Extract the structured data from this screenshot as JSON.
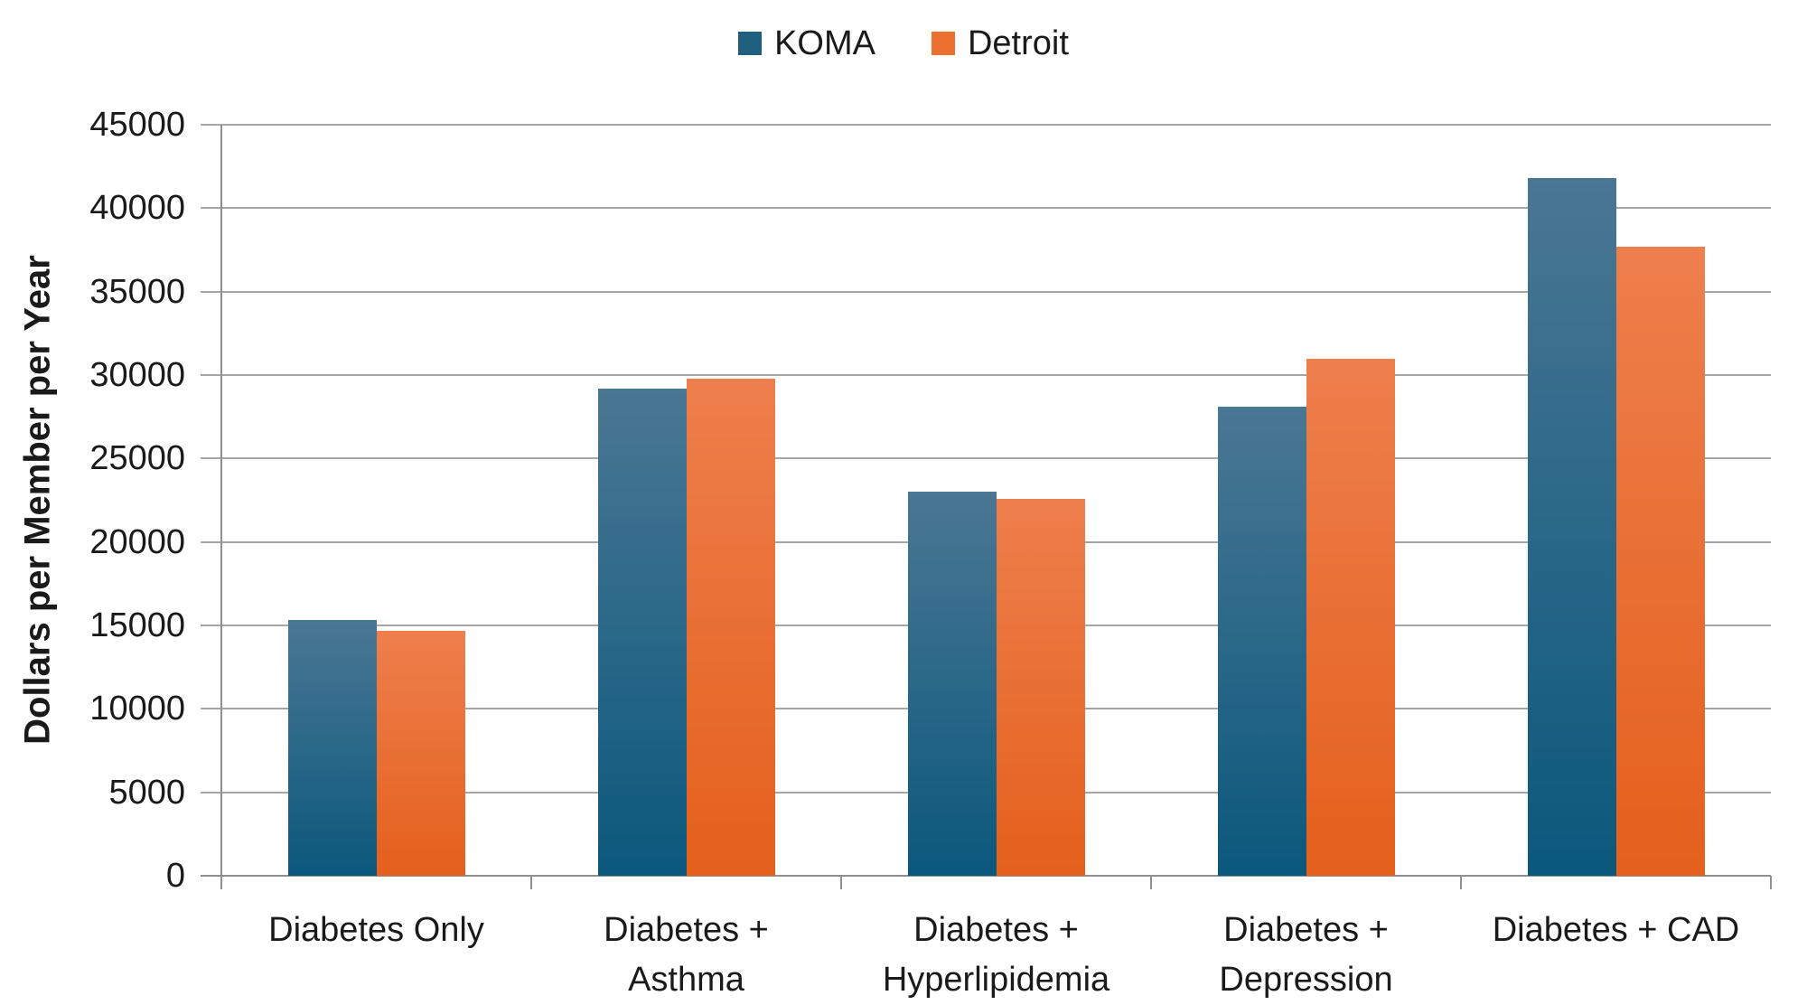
{
  "chart_data": {
    "type": "bar",
    "title": "",
    "legend": {
      "position": "top"
    },
    "categories": [
      "Diabetes Only",
      "Diabetes + Asthma",
      "Diabetes + Hyperlipidemia",
      "Diabetes + Depression",
      "Diabetes + CAD"
    ],
    "category_line_breaks": [
      [
        "Diabetes Only"
      ],
      [
        "Diabetes +",
        "Asthma"
      ],
      [
        "Diabetes +",
        "Hyperlipidemia"
      ],
      [
        "Diabetes +",
        "Depression"
      ],
      [
        "Diabetes + CAD"
      ]
    ],
    "series": [
      {
        "name": "KOMA",
        "values": [
          15300,
          29200,
          23000,
          28100,
          41800
        ],
        "color": "#1F6080",
        "gradient_top": "#4A7793",
        "gradient_bottom": "#0B587D"
      },
      {
        "name": "Detroit",
        "values": [
          14700,
          29800,
          22600,
          31000,
          37700
        ],
        "color": "#ED7031",
        "gradient_top": "#EE7F4D",
        "gradient_bottom": "#E4601C"
      }
    ],
    "xlabel": "",
    "ylabel": "Dollars per Member per Year",
    "ylim": [
      0,
      45000
    ],
    "ytick_step": 5000,
    "ytick_labels": [
      "0",
      "5000",
      "10000",
      "15000",
      "20000",
      "25000",
      "30000",
      "35000",
      "40000",
      "45000"
    ],
    "grid": true,
    "grid_color": "#A6A6A6",
    "axis_color": "#8F8F8F",
    "text_color": "#1A1A1A",
    "background_color": "#FFFFFF"
  }
}
